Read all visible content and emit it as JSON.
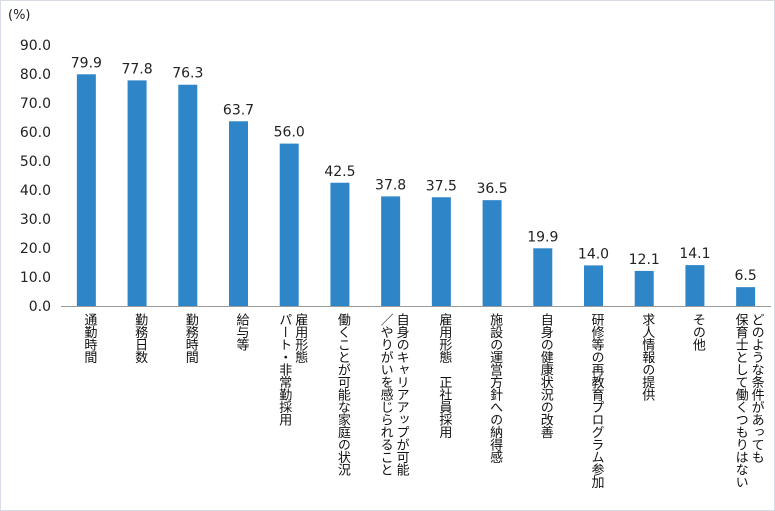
{
  "chart_data": {
    "type": "bar",
    "unit_label": "(%)",
    "title": "",
    "xlabel": "",
    "ylabel": "",
    "ylim": [
      0,
      90
    ],
    "yticks": [
      "0.0",
      "10.0",
      "20.0",
      "30.0",
      "40.0",
      "50.0",
      "60.0",
      "70.0",
      "80.0",
      "90.0"
    ],
    "grid": false,
    "bar_color": "#2e86c8",
    "categories": [
      "通勤時間",
      "勤務日数",
      "勤務時間",
      "給与等",
      "雇用形態\nパート・非常勤採用",
      "働くことが可能な家庭の状況",
      "自身のキャリアアップが可能\n／やりがいを感じられること",
      "雇用形態　正社員採用",
      "施設の運営方針への納得感",
      "自身の健康状況の改善",
      "研修等の再教育プログラム参加",
      "求人情報の提供",
      "その他",
      "どのような条件があっても\n保育士として働くつもりはない"
    ],
    "values": [
      79.9,
      77.8,
      76.3,
      63.7,
      56.0,
      42.5,
      37.8,
      37.5,
      36.5,
      19.9,
      14.0,
      12.1,
      14.1,
      6.5
    ],
    "value_labels": [
      "79.9",
      "77.8",
      "76.3",
      "63.7",
      "56.0",
      "42.5",
      "37.8",
      "37.5",
      "36.5",
      "19.9",
      "14.0",
      "12.1",
      "14.1",
      "6.5"
    ]
  }
}
